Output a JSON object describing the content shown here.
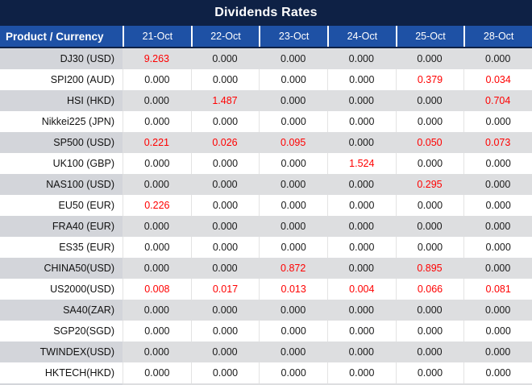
{
  "title": "Dividends Rates",
  "colors": {
    "title_bg": "#0E2145",
    "header_bg": "#1E51A5",
    "stripe_label_bg": "#D3D5DA",
    "stripe_value_bg": "#DDDEE0",
    "row_white_bg": "#FFFFFF",
    "separator": "#E3E3E3",
    "value_black": "#1A1A1A",
    "value_red": "#FF0000"
  },
  "table": {
    "product_header": "Product / Currency",
    "date_headers": [
      "21-Oct",
      "22-Oct",
      "23-Oct",
      "24-Oct",
      "25-Oct",
      "28-Oct"
    ],
    "zero_value": "0.000",
    "rows": [
      {
        "product": "DJ30 (USD)",
        "values": [
          "9.263",
          "0.000",
          "0.000",
          "0.000",
          "0.000",
          "0.000"
        ]
      },
      {
        "product": "SPI200 (AUD)",
        "values": [
          "0.000",
          "0.000",
          "0.000",
          "0.000",
          "0.379",
          "0.034"
        ]
      },
      {
        "product": "HSI (HKD)",
        "values": [
          "0.000",
          "1.487",
          "0.000",
          "0.000",
          "0.000",
          "0.704"
        ]
      },
      {
        "product": "Nikkei225 (JPN)",
        "values": [
          "0.000",
          "0.000",
          "0.000",
          "0.000",
          "0.000",
          "0.000"
        ]
      },
      {
        "product": "SP500 (USD)",
        "values": [
          "0.221",
          "0.026",
          "0.095",
          "0.000",
          "0.050",
          "0.073"
        ]
      },
      {
        "product": "UK100 (GBP)",
        "values": [
          "0.000",
          "0.000",
          "0.000",
          "1.524",
          "0.000",
          "0.000"
        ]
      },
      {
        "product": "NAS100 (USD)",
        "values": [
          "0.000",
          "0.000",
          "0.000",
          "0.000",
          "0.295",
          "0.000"
        ]
      },
      {
        "product": "EU50 (EUR)",
        "values": [
          "0.226",
          "0.000",
          "0.000",
          "0.000",
          "0.000",
          "0.000"
        ]
      },
      {
        "product": "FRA40 (EUR)",
        "values": [
          "0.000",
          "0.000",
          "0.000",
          "0.000",
          "0.000",
          "0.000"
        ]
      },
      {
        "product": "ES35 (EUR)",
        "values": [
          "0.000",
          "0.000",
          "0.000",
          "0.000",
          "0.000",
          "0.000"
        ]
      },
      {
        "product": "CHINA50(USD)",
        "values": [
          "0.000",
          "0.000",
          "0.872",
          "0.000",
          "0.895",
          "0.000"
        ]
      },
      {
        "product": "US2000(USD)",
        "values": [
          "0.008",
          "0.017",
          "0.013",
          "0.004",
          "0.066",
          "0.081"
        ]
      },
      {
        "product": "SA40(ZAR)",
        "values": [
          "0.000",
          "0.000",
          "0.000",
          "0.000",
          "0.000",
          "0.000"
        ]
      },
      {
        "product": "SGP20(SGD)",
        "values": [
          "0.000",
          "0.000",
          "0.000",
          "0.000",
          "0.000",
          "0.000"
        ]
      },
      {
        "product": "TWINDEX(USD)",
        "values": [
          "0.000",
          "0.000",
          "0.000",
          "0.000",
          "0.000",
          "0.000"
        ]
      },
      {
        "product": "HKTECH(HKD)",
        "values": [
          "0.000",
          "0.000",
          "0.000",
          "0.000",
          "0.000",
          "0.000"
        ]
      }
    ]
  }
}
